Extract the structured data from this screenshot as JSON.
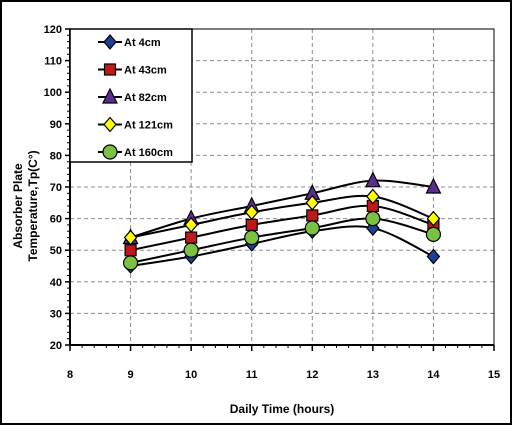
{
  "chart_data": {
    "type": "line",
    "title": "",
    "xlabel": "Daily Time (hours)",
    "ylabel_line1": "Absorber Plate",
    "ylabel_line2": "Temperature,Tp(C°)",
    "xlim": [
      8,
      15
    ],
    "ylim": [
      20,
      120
    ],
    "xticks": [
      8,
      9,
      10,
      11,
      12,
      13,
      14,
      15
    ],
    "yticks": [
      20,
      30,
      40,
      50,
      60,
      70,
      80,
      90,
      100,
      110,
      120
    ],
    "grid": true,
    "legend_position": "top-left",
    "x": [
      9,
      10,
      11,
      12,
      13,
      14
    ],
    "series": [
      {
        "name": "At 4cm",
        "values": [
          45,
          48,
          52,
          56,
          57,
          48
        ],
        "marker": "diamond",
        "color": "#1f3f94"
      },
      {
        "name": "At 43cm",
        "values": [
          50,
          54,
          58,
          61,
          64,
          58
        ],
        "marker": "square",
        "color": "#c01818"
      },
      {
        "name": "At 82cm",
        "values": [
          54,
          60,
          64,
          68,
          72,
          70
        ],
        "marker": "triangle",
        "color": "#5a2d90"
      },
      {
        "name": "At 121cm",
        "values": [
          54,
          58,
          62,
          65,
          67,
          60
        ],
        "marker": "diamond",
        "color": "#ffff00"
      },
      {
        "name": "At 160cm",
        "values": [
          46,
          50,
          54,
          57,
          60,
          55
        ],
        "marker": "circle",
        "color": "#7cc242"
      }
    ]
  }
}
